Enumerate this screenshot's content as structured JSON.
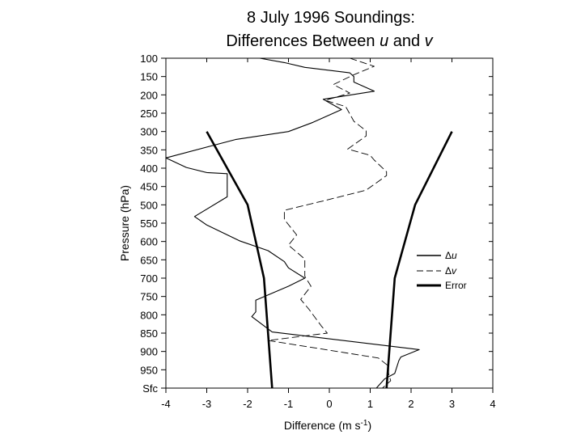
{
  "chart_data": {
    "type": "line",
    "title_line1": "8 July 1996 Soundings:",
    "title_line2_prefix": "Differences Between ",
    "title_line2_u": "u",
    "title_line2_and": " and ",
    "title_line2_v": "v",
    "xlabel_prefix": "Difference (m s",
    "xlabel_exp": "-1",
    "xlabel_suffix": ")",
    "ylabel": "Pressure (hPa)",
    "xlim": [
      -4,
      4
    ],
    "x_ticks": [
      "-4",
      "-3",
      "-2",
      "-1",
      "0",
      "1",
      "2",
      "3",
      "4"
    ],
    "y_ticks": [
      "100",
      "150",
      "200",
      "250",
      "300",
      "350",
      "400",
      "450",
      "500",
      "550",
      "600",
      "650",
      "700",
      "750",
      "800",
      "850",
      "900",
      "950",
      "Sfc"
    ],
    "y_tick_values": [
      100,
      150,
      200,
      250,
      300,
      350,
      400,
      450,
      500,
      550,
      600,
      650,
      700,
      750,
      800,
      850,
      900,
      950,
      1000
    ],
    "y_direction": "pressure increases downward",
    "grid": false,
    "legend_position": "right, middle",
    "legend": [
      {
        "delta": "Δ",
        "sym": "u",
        "style": "solid"
      },
      {
        "delta": "Δ",
        "sym": "v",
        "style": "dashed"
      },
      {
        "delta": "",
        "sym": "Error",
        "style": "thick"
      }
    ],
    "series": [
      {
        "key": "du",
        "style": "solid",
        "points": [
          [
            -1.7,
            100
          ],
          [
            -1.1,
            112
          ],
          [
            -0.6,
            125
          ],
          [
            0.5,
            140
          ],
          [
            0.6,
            150
          ],
          [
            0.6,
            165
          ],
          [
            1.1,
            190
          ],
          [
            -0.15,
            212
          ],
          [
            0.3,
            240
          ],
          [
            -0.4,
            275
          ],
          [
            -1.0,
            300
          ],
          [
            -2.3,
            322
          ],
          [
            -4.0,
            372
          ],
          [
            -3.5,
            398
          ],
          [
            -3.0,
            412
          ],
          [
            -2.5,
            415
          ],
          [
            -2.5,
            450
          ],
          [
            -2.5,
            478
          ],
          [
            -3.3,
            532
          ],
          [
            -3.0,
            555
          ],
          [
            -2.2,
            598
          ],
          [
            -1.5,
            625
          ],
          [
            -1.1,
            655
          ],
          [
            -1.0,
            672
          ],
          [
            -0.6,
            700
          ],
          [
            -1.0,
            722
          ],
          [
            -1.8,
            760
          ],
          [
            -1.8,
            782
          ],
          [
            -1.8,
            792
          ],
          [
            -1.9,
            805
          ],
          [
            -1.4,
            847
          ],
          [
            2.2,
            895
          ],
          [
            1.75,
            915
          ],
          [
            1.7,
            925
          ],
          [
            1.6,
            960
          ],
          [
            1.35,
            975
          ],
          [
            1.15,
            1000
          ]
        ]
      },
      {
        "key": "dv",
        "style": "dashed",
        "points": [
          [
            0.5,
            100
          ],
          [
            1.1,
            122
          ],
          [
            0.6,
            145
          ],
          [
            0.1,
            172
          ],
          [
            0.5,
            195
          ],
          [
            -0.1,
            215
          ],
          [
            0.4,
            232
          ],
          [
            0.6,
            272
          ],
          [
            0.9,
            298
          ],
          [
            0.9,
            312
          ],
          [
            0.45,
            348
          ],
          [
            1.0,
            365
          ],
          [
            1.1,
            378
          ],
          [
            1.4,
            410
          ],
          [
            1.4,
            420
          ],
          [
            0.9,
            460
          ],
          [
            -0.1,
            488
          ],
          [
            -1.1,
            515
          ],
          [
            -1.1,
            540
          ],
          [
            -0.8,
            582
          ],
          [
            -1.0,
            610
          ],
          [
            -0.6,
            648
          ],
          [
            -0.6,
            672
          ],
          [
            -0.6,
            695
          ],
          [
            -0.45,
            722
          ],
          [
            -0.7,
            758
          ],
          [
            -0.5,
            785
          ],
          [
            -0.2,
            830
          ],
          [
            -0.05,
            850
          ],
          [
            -1.5,
            870
          ],
          [
            1.2,
            918
          ],
          [
            1.45,
            940
          ],
          [
            1.45,
            960
          ],
          [
            1.5,
            980
          ],
          [
            1.3,
            1000
          ]
        ]
      },
      {
        "key": "error_left",
        "style": "thick",
        "points": [
          [
            -3.0,
            300
          ],
          [
            -2.0,
            500
          ],
          [
            -1.6,
            700
          ],
          [
            -1.4,
            1000
          ]
        ]
      },
      {
        "key": "error_right",
        "style": "thick",
        "points": [
          [
            3.0,
            300
          ],
          [
            2.1,
            500
          ],
          [
            1.6,
            700
          ],
          [
            1.4,
            1000
          ]
        ]
      }
    ]
  }
}
